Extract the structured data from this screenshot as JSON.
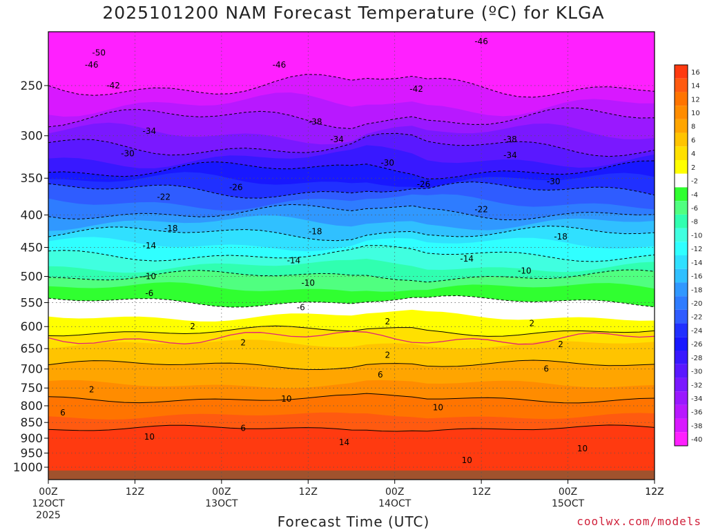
{
  "chart_data": {
    "type": "heatmap",
    "title": "2025101200 NAM Forecast Temperature (ºC) for KLGA",
    "xlabel": "Forecast Time (UTC)",
    "ylabel": "",
    "y_scale": "log",
    "y_ticks": [
      250,
      300,
      350,
      400,
      450,
      500,
      550,
      600,
      650,
      700,
      750,
      800,
      850,
      900,
      950,
      1000
    ],
    "ylim": [
      200,
      1030
    ],
    "x_ticks": [
      {
        "hour": 0,
        "l1": "00Z",
        "l2": "12OCT",
        "l3": "2025"
      },
      {
        "hour": 12,
        "l1": "12Z",
        "l2": "",
        "l3": ""
      },
      {
        "hour": 24,
        "l1": "00Z",
        "l2": "13OCT",
        "l3": ""
      },
      {
        "hour": 36,
        "l1": "12Z",
        "l2": "",
        "l3": ""
      },
      {
        "hour": 48,
        "l1": "00Z",
        "l2": "14OCT",
        "l3": ""
      },
      {
        "hour": 60,
        "l1": "12Z",
        "l2": "",
        "l3": ""
      },
      {
        "hour": 72,
        "l1": "00Z",
        "l2": "15OCT",
        "l3": ""
      },
      {
        "hour": 84,
        "l1": "12Z",
        "l2": "",
        "l3": ""
      }
    ],
    "xlim": [
      0,
      84
    ],
    "colorbar": {
      "levels": [
        16,
        14,
        12,
        10,
        8,
        6,
        4,
        2,
        -2,
        -4,
        -6,
        -8,
        -10,
        -12,
        -14,
        -16,
        -18,
        -20,
        -22,
        -24,
        -26,
        -28,
        -30,
        -32,
        -34,
        -36,
        -38,
        -40
      ],
      "colors": [
        "#ff3a10",
        "#ff5a10",
        "#ff7400",
        "#ff8c00",
        "#ffa500",
        "#ffc400",
        "#ffe000",
        "#ffff00",
        "#ffffff",
        "#30ff30",
        "#50ff80",
        "#30ffb0",
        "#40ffe0",
        "#30ffff",
        "#30e0ff",
        "#30c0ff",
        "#3098ff",
        "#2e7cff",
        "#2f5cff",
        "#2030ff",
        "#1818ff",
        "#3818ff",
        "#5a18ff",
        "#7a18ff",
        "#9a18ff",
        "#b818ff",
        "#d818ff",
        "#ff20ff"
      ]
    },
    "contour_labels": [
      {
        "t": "-50",
        "hour": 7,
        "p": 222
      },
      {
        "t": "-46",
        "hour": 6,
        "p": 232
      },
      {
        "t": "-46",
        "hour": 32,
        "p": 232
      },
      {
        "t": "-46",
        "hour": 60,
        "p": 213
      },
      {
        "t": "-42",
        "hour": 9,
        "p": 250
      },
      {
        "t": "-42",
        "hour": 51,
        "p": 253
      },
      {
        "t": "-38",
        "hour": 37,
        "p": 285
      },
      {
        "t": "-38",
        "hour": 64,
        "p": 304
      },
      {
        "t": "-34",
        "hour": 14,
        "p": 295
      },
      {
        "t": "-34",
        "hour": 40,
        "p": 304
      },
      {
        "t": "-34",
        "hour": 64,
        "p": 322
      },
      {
        "t": "-30",
        "hour": 11,
        "p": 320
      },
      {
        "t": "-30",
        "hour": 47,
        "p": 331
      },
      {
        "t": "-30",
        "hour": 70,
        "p": 354
      },
      {
        "t": "-26",
        "hour": 26,
        "p": 362
      },
      {
        "t": "-26",
        "hour": 52,
        "p": 358
      },
      {
        "t": "-22",
        "hour": 16,
        "p": 375
      },
      {
        "t": "-22",
        "hour": 60,
        "p": 392
      },
      {
        "t": "-18",
        "hour": 17,
        "p": 420
      },
      {
        "t": "-18",
        "hour": 37,
        "p": 425
      },
      {
        "t": "-18",
        "hour": 71,
        "p": 433
      },
      {
        "t": "-14",
        "hour": 14,
        "p": 447
      },
      {
        "t": "-14",
        "hour": 34,
        "p": 472
      },
      {
        "t": "-14",
        "hour": 58,
        "p": 469
      },
      {
        "t": "-10",
        "hour": 14,
        "p": 500
      },
      {
        "t": "-10",
        "hour": 36,
        "p": 512
      },
      {
        "t": "-10",
        "hour": 66,
        "p": 490
      },
      {
        "t": "-6",
        "hour": 14,
        "p": 532
      },
      {
        "t": "-6",
        "hour": 35,
        "p": 560
      },
      {
        "t": "2",
        "hour": 20,
        "p": 600
      },
      {
        "t": "2",
        "hour": 47,
        "p": 589
      },
      {
        "t": "2",
        "hour": 67,
        "p": 593
      },
      {
        "t": "2",
        "hour": 27,
        "p": 636
      },
      {
        "t": "2",
        "hour": 47,
        "p": 665
      },
      {
        "t": "2",
        "hour": 71,
        "p": 640
      },
      {
        "t": "2",
        "hour": 6,
        "p": 754
      },
      {
        "t": "6",
        "hour": 46,
        "p": 715
      },
      {
        "t": "6",
        "hour": 69,
        "p": 700
      },
      {
        "t": "6",
        "hour": 2,
        "p": 820
      },
      {
        "t": "6",
        "hour": 27,
        "p": 868
      },
      {
        "t": "10",
        "hour": 33,
        "p": 780
      },
      {
        "t": "10",
        "hour": 54,
        "p": 805
      },
      {
        "t": "10",
        "hour": 14,
        "p": 896
      },
      {
        "t": "10",
        "hour": 58,
        "p": 975
      },
      {
        "t": "10",
        "hour": 74,
        "p": 935
      },
      {
        "t": "14",
        "hour": 41,
        "p": 914
      }
    ]
  },
  "branding": {
    "credit": "coolwx.com/models"
  }
}
